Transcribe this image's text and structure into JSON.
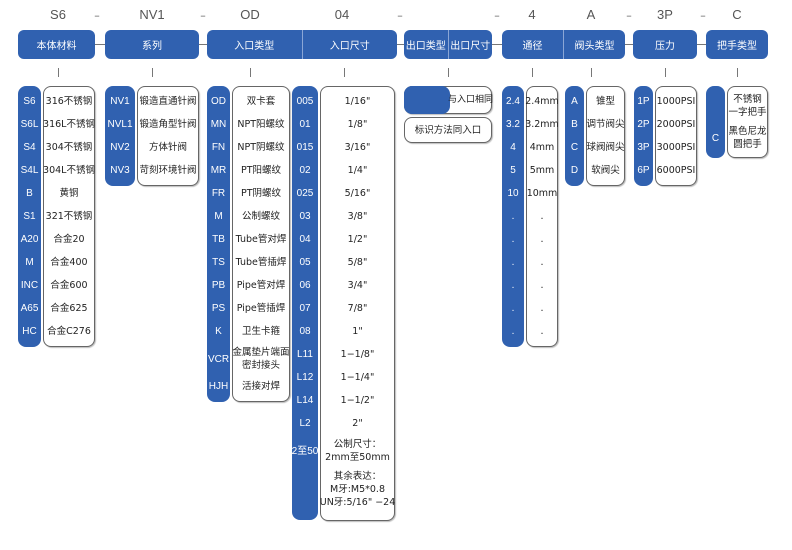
{
  "top_codes": [
    "S6",
    "NV1",
    "OD",
    "04",
    "4",
    "A",
    "3P",
    "C"
  ],
  "separator": "–",
  "headers": [
    [
      "本体材料"
    ],
    [
      "系列"
    ],
    [
      "入口类型",
      "入口尺寸"
    ],
    [
      "出口类型",
      "出口尺寸"
    ],
    [
      "通径",
      "阀头类型"
    ],
    [
      "压力"
    ],
    [
      "把手类型"
    ]
  ],
  "colors": {
    "blue": "#3061b0",
    "border": "#666666"
  },
  "columns": [
    {
      "rows": [
        {
          "code": "S6",
          "desc": [
            "316不锈钢"
          ]
        },
        {
          "code": "S6L",
          "desc": [
            "316L不锈钢"
          ]
        },
        {
          "code": "S4",
          "desc": [
            "304不锈钢"
          ]
        },
        {
          "code": "S4L",
          "desc": [
            "304L不锈钢"
          ]
        },
        {
          "code": "B",
          "desc": [
            "黄铜"
          ]
        },
        {
          "code": "S1",
          "desc": [
            "321不锈钢"
          ]
        },
        {
          "code": "A20",
          "desc": [
            "合金20"
          ]
        },
        {
          "code": "M",
          "desc": [
            "合金400"
          ]
        },
        {
          "code": "INC",
          "desc": [
            "合金600"
          ]
        },
        {
          "code": "A65",
          "desc": [
            "合金625"
          ]
        },
        {
          "code": "HC",
          "desc": [
            "合金C276"
          ]
        }
      ]
    },
    {
      "rows": [
        {
          "code": "NV1",
          "desc": [
            "锻造直通针阀"
          ]
        },
        {
          "code": "NVL1",
          "desc": [
            "锻造角型针阀"
          ]
        },
        {
          "code": "NV2",
          "desc": [
            "方体针阀"
          ]
        },
        {
          "code": "NV3",
          "desc": [
            "苛刻环境针阀"
          ]
        }
      ]
    },
    {
      "rows": [
        {
          "code": "OD",
          "desc": [
            "双卡套"
          ]
        },
        {
          "code": "MN",
          "desc": [
            "NPT阳螺纹"
          ]
        },
        {
          "code": "FN",
          "desc": [
            "NPT阴螺纹"
          ]
        },
        {
          "code": "MR",
          "desc": [
            "PT阳螺纹"
          ]
        },
        {
          "code": "FR",
          "desc": [
            "PT阴螺纹"
          ]
        },
        {
          "code": "M",
          "desc": [
            "公制螺纹"
          ]
        },
        {
          "code": "TB",
          "desc": [
            "Tube管对焊"
          ]
        },
        {
          "code": "TS",
          "desc": [
            "Tube管插焊"
          ]
        },
        {
          "code": "PB",
          "desc": [
            "Pipe管对焊"
          ]
        },
        {
          "code": "PS",
          "desc": [
            "Pipe管插焊"
          ]
        },
        {
          "code": "K",
          "desc": [
            "卫生卡箍"
          ]
        },
        {
          "code": "VCR",
          "desc": [
            "金属垫片端面",
            "密封接头"
          ]
        },
        {
          "code": "HJH",
          "desc": [
            "活接对焊"
          ]
        }
      ]
    },
    {
      "rows": [
        {
          "code": "005",
          "desc": [
            "1/16\""
          ]
        },
        {
          "code": "01",
          "desc": [
            "1/8\""
          ]
        },
        {
          "code": "015",
          "desc": [
            "3/16\""
          ]
        },
        {
          "code": "02",
          "desc": [
            "1/4\""
          ]
        },
        {
          "code": "025",
          "desc": [
            "5/16\""
          ]
        },
        {
          "code": "03",
          "desc": [
            "3/8\""
          ]
        },
        {
          "code": "04",
          "desc": [
            "1/2\""
          ]
        },
        {
          "code": "05",
          "desc": [
            "5/8\""
          ]
        },
        {
          "code": "06",
          "desc": [
            "3/4\""
          ]
        },
        {
          "code": "07",
          "desc": [
            "7/8\""
          ]
        },
        {
          "code": "08",
          "desc": [
            "1\""
          ]
        },
        {
          "code": "L11",
          "desc": [
            "1−1/8\""
          ]
        },
        {
          "code": "L12",
          "desc": [
            "1−1/4\""
          ]
        },
        {
          "code": "L14",
          "desc": [
            "1−1/2\""
          ]
        },
        {
          "code": "L2",
          "desc": [
            "2\""
          ]
        },
        {
          "code": "2至50",
          "desc": [
            "公制尺寸：",
            "2mm至50mm"
          ]
        },
        {
          "code": "",
          "desc": [
            "其余表达：",
            "M牙:M5*0.8",
            "UN牙:5/16\" −24"
          ]
        }
      ]
    },
    {
      "rows": [
        {
          "code": "2.4",
          "desc": [
            "2.4mm"
          ]
        },
        {
          "code": "3.2",
          "desc": [
            "3.2mm"
          ]
        },
        {
          "code": "4",
          "desc": [
            "4mm"
          ]
        },
        {
          "code": "5",
          "desc": [
            "5mm"
          ]
        },
        {
          "code": "10",
          "desc": [
            "10mm"
          ]
        },
        {
          "code": ".",
          "desc": [
            "."
          ]
        },
        {
          "code": ".",
          "desc": [
            "."
          ]
        },
        {
          "code": ".",
          "desc": [
            "."
          ]
        },
        {
          "code": ".",
          "desc": [
            "."
          ]
        },
        {
          "code": ".",
          "desc": [
            "."
          ]
        },
        {
          "code": ".",
          "desc": [
            "."
          ]
        }
      ]
    },
    {
      "rows": [
        {
          "code": "A",
          "desc": [
            "锥型"
          ]
        },
        {
          "code": "B",
          "desc": [
            "调节阀尖"
          ]
        },
        {
          "code": "C",
          "desc": [
            "球阀阀尖"
          ]
        },
        {
          "code": "D",
          "desc": [
            "软阀尖"
          ]
        }
      ]
    },
    {
      "rows": [
        {
          "code": "1P",
          "desc": [
            "1000PSI"
          ]
        },
        {
          "code": "2P",
          "desc": [
            "2000PSI"
          ]
        },
        {
          "code": "3P",
          "desc": [
            "3000PSI"
          ]
        },
        {
          "code": "6P",
          "desc": [
            "6000PSI"
          ]
        }
      ]
    },
    {
      "rows": [
        {
          "code": "",
          "desc": [
            "不锈钢",
            "一字把手"
          ]
        },
        {
          "code": "C",
          "desc": [
            "黑色尼龙",
            "圆把手"
          ]
        }
      ]
    }
  ],
  "outlet": {
    "same_as_inlet": "与入口相同",
    "marking": "标识方法同入口"
  }
}
